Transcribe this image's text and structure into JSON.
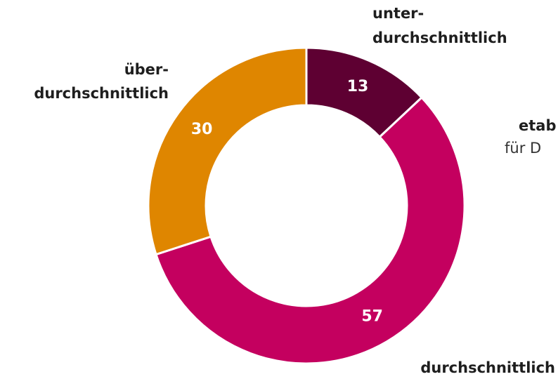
{
  "chart_data": {
    "type": "donut",
    "categories": [
      [
        "unter-",
        "durchschnittlich"
      ],
      [
        "durchschnittlich"
      ],
      [
        "über-",
        "durchschnittlich"
      ]
    ],
    "values": [
      13,
      57,
      30
    ],
    "colors": [
      "#5e0032",
      "#c4005f",
      "#df8600"
    ],
    "annotations": [
      "etab",
      "für D"
    ]
  }
}
